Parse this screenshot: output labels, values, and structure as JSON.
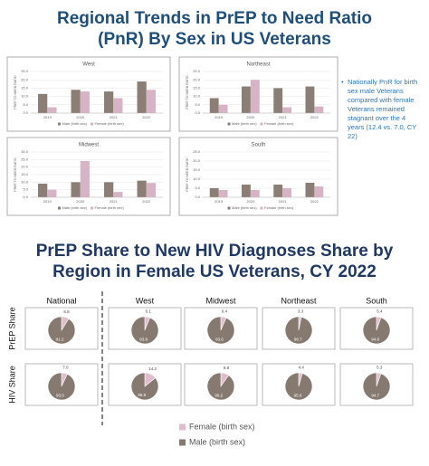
{
  "slide_title_1": "Regional Trends in PrEP to Need Ratio (PnR) By Sex in US Veterans",
  "note": "Nationally PnR for birth sex male Veterans compared with female Veterans remained stagnant over the 4 years (12.4 vs. 7.0, CY 22)",
  "slide_title_2": "PrEP Share to New HIV Diagnoses Share by Region in Female US Veterans, CY 2022",
  "pie_columns": [
    "National",
    "West",
    "Midwest",
    "Northeast",
    "South"
  ],
  "pie_rows": [
    "PrEP Share",
    "HIV Share"
  ],
  "pie_legend": [
    {
      "name": "Female (birth sex)",
      "color": "#e0bccd"
    },
    {
      "name": "Male (birth sex)",
      "color": "#867a70"
    }
  ],
  "chart_data": [
    {
      "type": "bar",
      "title": "West",
      "y_label": "PREP TO NEED RATIO",
      "categories": [
        "2019",
        "2020",
        "2021",
        "2022"
      ],
      "series": [
        {
          "name": "Male (birth sex)",
          "color": "#8b7e74",
          "values": [
            11.5,
            14,
            13,
            19
          ]
        },
        {
          "name": "Female (birth sex)",
          "color": "#d6b4c6",
          "values": [
            3.5,
            13,
            9,
            14
          ]
        }
      ],
      "ylim": [
        0,
        25
      ],
      "yticks": [
        {
          "value": 0,
          "label": "0.0"
        },
        {
          "value": 5,
          "label": "5.0"
        },
        {
          "value": 10,
          "label": "10.0"
        },
        {
          "value": 15,
          "label": "15.0"
        },
        {
          "value": 20,
          "label": "20.0"
        },
        {
          "value": 25,
          "label": "25.0"
        }
      ],
      "grid": true
    },
    {
      "type": "bar",
      "title": "Northeast",
      "y_label": "PREP TO NEED RATIO",
      "categories": [
        "2019",
        "2020",
        "2021",
        "2022"
      ],
      "series": [
        {
          "name": "Male (birth sex)",
          "color": "#8b7e74",
          "values": [
            9,
            16,
            15,
            16
          ]
        },
        {
          "name": "Female (birth sex)",
          "color": "#d6b4c6",
          "values": [
            5,
            20,
            3.5,
            4
          ]
        }
      ],
      "ylim": [
        0,
        25
      ],
      "yticks": [
        {
          "value": 0,
          "label": "0.0"
        },
        {
          "value": 5,
          "label": "5.0"
        },
        {
          "value": 10,
          "label": "10.0"
        },
        {
          "value": 15,
          "label": "15.0"
        },
        {
          "value": 20,
          "label": "20.0"
        },
        {
          "value": 25,
          "label": "25.0"
        }
      ],
      "grid": true
    },
    {
      "type": "bar",
      "title": "Midwest",
      "y_label": "PREP TO NEED RATIO",
      "categories": [
        "2019",
        "2020",
        "2021",
        "2022"
      ],
      "series": [
        {
          "name": "Male (birth sex)",
          "color": "#8b7e74",
          "values": [
            9,
            10,
            10,
            11
          ]
        },
        {
          "name": "Female (birth sex)",
          "color": "#d6b4c6",
          "values": [
            5,
            24,
            3.5,
            9.5
          ]
        }
      ],
      "ylim": [
        0,
        30
      ],
      "yticks": [
        {
          "value": 0,
          "label": "0.0"
        },
        {
          "value": 5,
          "label": "5.0"
        },
        {
          "value": 10,
          "label": "10.0"
        },
        {
          "value": 15,
          "label": "15.0"
        },
        {
          "value": 20,
          "label": "20.0"
        },
        {
          "value": 25,
          "label": "25.0"
        },
        {
          "value": 30,
          "label": "30.0"
        }
      ],
      "grid": true
    },
    {
      "type": "bar",
      "title": "South",
      "y_label": "PREP TO NEED RATIO",
      "categories": [
        "2019",
        "2020",
        "2021",
        "2022"
      ],
      "series": [
        {
          "name": "Male (birth sex)",
          "color": "#8b7e74",
          "values": [
            5,
            7,
            7,
            8
          ]
        },
        {
          "name": "Female (birth sex)",
          "color": "#d6b4c6",
          "values": [
            4,
            4,
            5,
            6
          ]
        }
      ],
      "ylim": [
        0,
        25
      ],
      "yticks": [
        {
          "value": 0,
          "label": "0.0"
        },
        {
          "value": 5,
          "label": "5.0"
        },
        {
          "value": 10,
          "label": "10.0"
        },
        {
          "value": 15,
          "label": "15.0"
        },
        {
          "value": 20,
          "label": "20.0"
        },
        {
          "value": 25,
          "label": "25.0"
        }
      ],
      "grid": true
    },
    {
      "type": "pie",
      "values": [
        8.8,
        91.2
      ],
      "colors": [
        "#e0bccd",
        "#867a70"
      ]
    },
    {
      "type": "pie",
      "values": [
        6.1,
        93.9
      ],
      "colors": [
        "#e0bccd",
        "#867a70"
      ]
    },
    {
      "type": "pie",
      "values": [
        6.4,
        93.6
      ],
      "colors": [
        "#e0bccd",
        "#867a70"
      ]
    },
    {
      "type": "pie",
      "values": [
        3.3,
        96.7
      ],
      "colors": [
        "#e0bccd",
        "#867a70"
      ]
    },
    {
      "type": "pie",
      "values": [
        5.4,
        94.6
      ],
      "colors": [
        "#e0bccd",
        "#867a70"
      ]
    },
    {
      "type": "pie",
      "values": [
        7,
        93
      ],
      "value_labels": [
        "7.0",
        "93.0"
      ],
      "colors": [
        "#e0bccd",
        "#867a70"
      ]
    },
    {
      "type": "pie",
      "values": [
        14.2,
        85.8
      ],
      "colors": [
        "#e0bccd",
        "#867a70"
      ]
    },
    {
      "type": "pie",
      "values": [
        9.8,
        90.2
      ],
      "colors": [
        "#e0bccd",
        "#867a70"
      ]
    },
    {
      "type": "pie",
      "values": [
        4.4,
        95.6
      ],
      "colors": [
        "#e0bccd",
        "#867a70"
      ]
    },
    {
      "type": "pie",
      "values": [
        5.3,
        94.7
      ],
      "colors": [
        "#e0bccd",
        "#867a70"
      ]
    }
  ]
}
